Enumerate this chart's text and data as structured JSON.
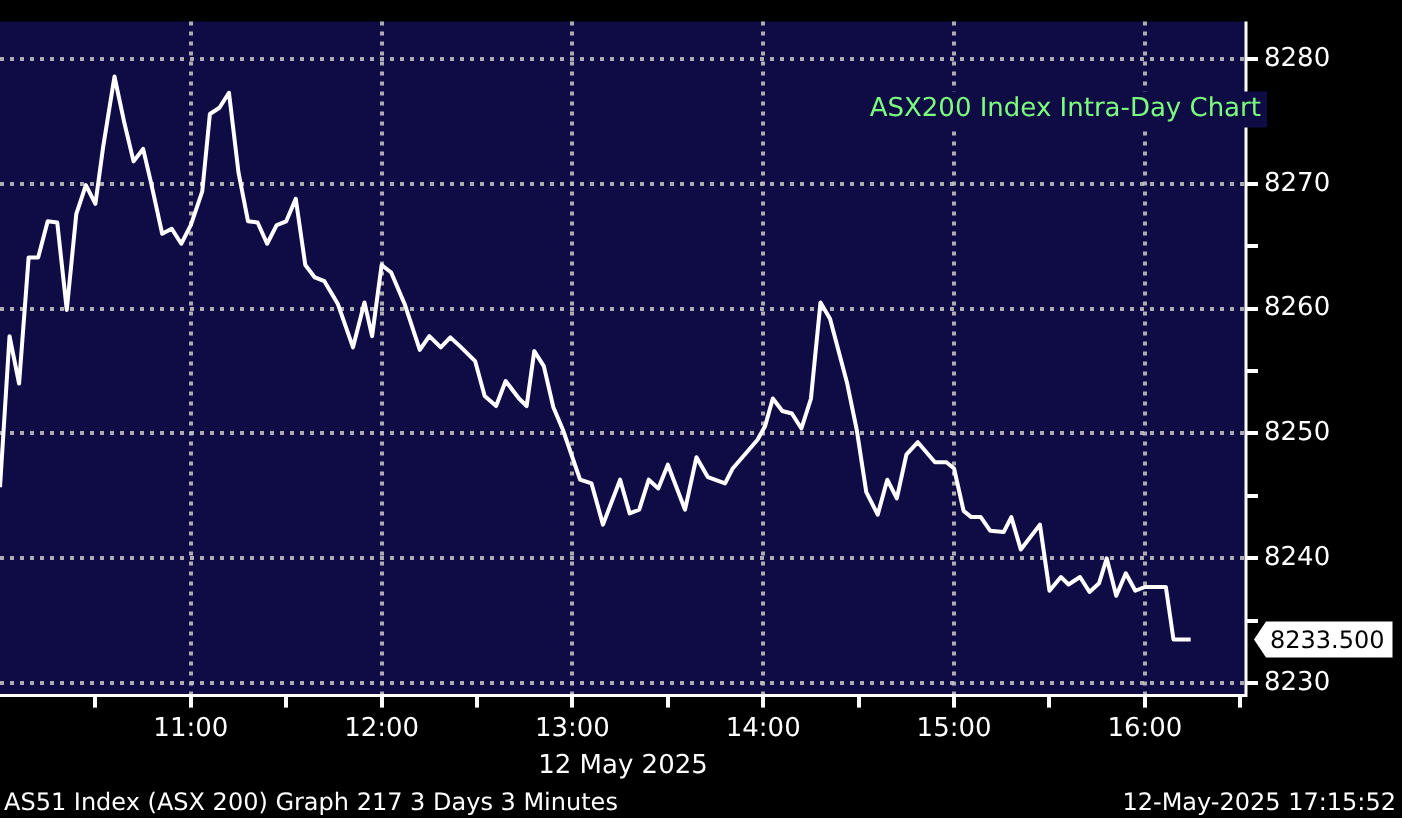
{
  "chart_data": {
    "type": "line",
    "title": "ASX200 Index Intra-Day Chart",
    "xlabel": "12 May 2025",
    "annotations": [
      "AS51 Index (ASX 200) Graph 217 3 Days 3 Minutes",
      "12-May-2025 17:15:52",
      "8233.500"
    ],
    "x": [
      10.0,
      10.05,
      10.1,
      10.15,
      10.2,
      10.25,
      10.3,
      10.35,
      10.4,
      10.45,
      10.5,
      10.54,
      10.6,
      10.65,
      10.7,
      10.75,
      10.79,
      10.85,
      10.9,
      10.95,
      11.0,
      11.06,
      11.1,
      11.15,
      11.2,
      11.25,
      11.3,
      11.35,
      11.4,
      11.45,
      11.5,
      11.55,
      11.6,
      11.65,
      11.7,
      11.77,
      11.85,
      11.91,
      11.95,
      12.0,
      12.05,
      12.12,
      12.2,
      12.25,
      12.31,
      12.36,
      12.41,
      12.49,
      12.54,
      12.6,
      12.65,
      12.72,
      12.76,
      12.8,
      12.85,
      12.9,
      12.95,
      13.04,
      13.1,
      13.16,
      13.25,
      13.3,
      13.35,
      13.4,
      13.45,
      13.5,
      13.59,
      13.65,
      13.71,
      13.8,
      13.84,
      13.97,
      14.01,
      14.05,
      14.1,
      14.15,
      14.2,
      14.25,
      14.3,
      14.35,
      14.44,
      14.49,
      14.54,
      14.6,
      14.65,
      14.7,
      14.75,
      14.81,
      14.9,
      14.96,
      15.0,
      15.05,
      15.09,
      15.14,
      15.19,
      15.26,
      15.3,
      15.35,
      15.45,
      15.5,
      15.56,
      15.6,
      15.66,
      15.71,
      15.76,
      15.8,
      15.85,
      15.9,
      15.95,
      16.0,
      16.11,
      16.15,
      16.24
    ],
    "series": [
      {
        "color": "#ffffff",
        "values": [
          8245.7,
          8257.8,
          8254.0,
          8264.1,
          8264.1,
          8267.0,
          8266.9,
          8259.9,
          8267.6,
          8269.9,
          8268.4,
          8272.9,
          8278.6,
          8275.0,
          8271.8,
          8272.8,
          8270.2,
          8266.0,
          8266.4,
          8265.2,
          8266.7,
          8269.4,
          8275.6,
          8276.1,
          8277.3,
          8270.9,
          8267.0,
          8266.9,
          8265.2,
          8266.7,
          8267.0,
          8268.8,
          8263.5,
          8262.5,
          8262.2,
          8260.4,
          8256.9,
          8260.5,
          8257.8,
          8263.5,
          8262.9,
          8260.4,
          8256.7,
          8257.8,
          8256.9,
          8257.7,
          8257.0,
          8255.8,
          8253.0,
          8252.2,
          8254.2,
          8252.8,
          8252.2,
          8256.6,
          8255.4,
          8252.1,
          8250.3,
          8246.3,
          8246.0,
          8242.7,
          8246.3,
          8243.6,
          8243.9,
          8246.3,
          8245.6,
          8247.5,
          8243.9,
          8248.1,
          8246.5,
          8246.0,
          8247.2,
          8249.5,
          8250.6,
          8252.8,
          8251.8,
          8251.6,
          8250.4,
          8252.8,
          8260.5,
          8259.2,
          8254.0,
          8250.3,
          8245.3,
          8243.5,
          8246.3,
          8244.8,
          8248.3,
          8249.3,
          8247.7,
          8247.7,
          8247.2,
          8243.8,
          8243.3,
          8243.3,
          8242.2,
          8242.1,
          8243.3,
          8240.7,
          8242.7,
          8237.4,
          8238.5,
          8237.9,
          8238.5,
          8237.3,
          8238.0,
          8240.0,
          8237.0,
          8238.8,
          8237.4,
          8237.7,
          8237.7,
          8233.5,
          8233.5
        ]
      }
    ],
    "xlim": [
      10,
      16.53
    ],
    "xticks": [
      {
        "value": 10.5,
        "label": null
      },
      {
        "value": 11,
        "label": "11:00"
      },
      {
        "value": 11.5,
        "label": null
      },
      {
        "value": 12,
        "label": "12:00"
      },
      {
        "value": 12.5,
        "label": null
      },
      {
        "value": 13,
        "label": "13:00"
      },
      {
        "value": 13.5,
        "label": null
      },
      {
        "value": 14,
        "label": "14:00"
      },
      {
        "value": 14.5,
        "label": null
      },
      {
        "value": 15,
        "label": "15:00"
      },
      {
        "value": 15.5,
        "label": null
      },
      {
        "value": 16,
        "label": "16:00"
      },
      {
        "value": 16.5,
        "label": null
      }
    ],
    "ylim": [
      8229,
      8283
    ],
    "yticks": [
      8230,
      {
        "value": 8235,
        "label": null
      },
      8240,
      {
        "value": 8245,
        "label": null
      },
      8250,
      {
        "value": 8255,
        "label": null
      },
      8260,
      {
        "value": 8265,
        "label": null
      },
      8270,
      {
        "value": 8275,
        "label": null
      },
      8280
    ],
    "grid": true,
    "legend": false
  }
}
